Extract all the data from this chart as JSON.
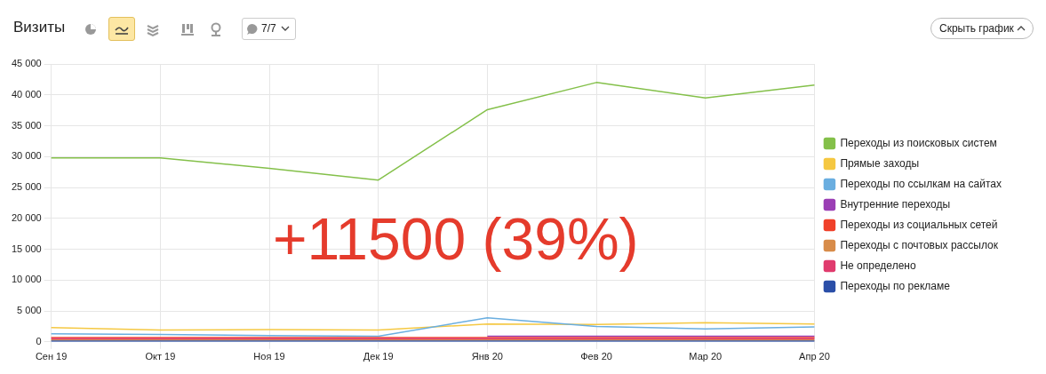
{
  "chart_data": {
    "type": "line",
    "title": "Визиты",
    "annotations": [
      "+11500 (39%)",
      "7/7",
      "Скрыть график"
    ],
    "categories": [
      "Сен 19",
      "Окт 19",
      "Ноя 19",
      "Дек 19",
      "Янв 20",
      "Фев 20",
      "Мар 20",
      "Апр 20"
    ],
    "series": [
      {
        "name": "Переходы из поисковых систем",
        "color": "#84c04a",
        "values": [
          29800,
          29800,
          28100,
          26200,
          37600,
          42000,
          39500,
          41600
        ]
      },
      {
        "name": "Прямые заходы",
        "color": "#f5c842",
        "values": [
          2300,
          1900,
          2000,
          1900,
          2900,
          2800,
          3100,
          2900
        ]
      },
      {
        "name": "Переходы по ссылкам на сайтах",
        "color": "#6aaee0",
        "values": [
          1300,
          1200,
          1000,
          900,
          3900,
          2500,
          2100,
          2400
        ]
      },
      {
        "name": "Внутренние переходы",
        "color": "#9b3fb5",
        "values": [
          null,
          null,
          null,
          null,
          900,
          900,
          900,
          900
        ]
      },
      {
        "name": "Переходы из социальных сетей",
        "color": "#f0412a",
        "values": [
          700,
          700,
          700,
          700,
          700,
          700,
          700,
          700
        ]
      },
      {
        "name": "Переходы с почтовых рассылок",
        "color": "#d88c4a",
        "values": [
          300,
          300,
          300,
          300,
          300,
          300,
          300,
          300
        ]
      },
      {
        "name": "Не определено",
        "color": "#e03b6e",
        "values": [
          500,
          500,
          500,
          500,
          500,
          500,
          500,
          500
        ]
      },
      {
        "name": "Переходы по рекламе",
        "color": "#2b4fa8",
        "values": [
          100,
          100,
          100,
          100,
          100,
          100,
          100,
          100
        ]
      }
    ],
    "ylim": [
      0,
      45000
    ],
    "yticks": [
      {
        "value": 0,
        "label": "0"
      },
      {
        "value": 5000,
        "label": "5 000"
      },
      {
        "value": 10000,
        "label": "10 000"
      },
      {
        "value": 15000,
        "label": "15 000"
      },
      {
        "value": 20000,
        "label": "20 000"
      },
      {
        "value": 25000,
        "label": "25 000"
      },
      {
        "value": 30000,
        "label": "30 000"
      },
      {
        "value": 35000,
        "label": "35 000"
      },
      {
        "value": 40000,
        "label": "40 000"
      },
      {
        "value": 45000,
        "label": "45 000"
      }
    ],
    "grid": true,
    "legend": "right",
    "marker": "none",
    "line_style": "solid"
  }
}
